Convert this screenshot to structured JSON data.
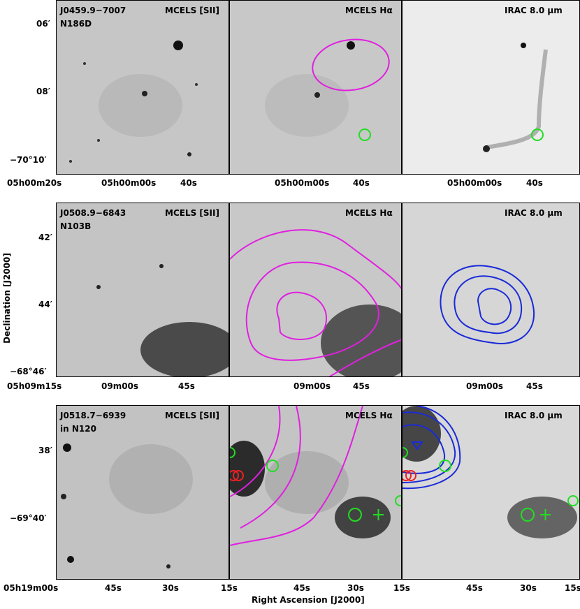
{
  "rows": [
    {
      "id": "row1",
      "source": "J0459.9−7007",
      "sublabel": "N186D",
      "panels": [
        "MCELS [SII]",
        "MCELS Hα",
        "IRAC 8.0 μm"
      ],
      "y_ticks": [
        "06′",
        "08′",
        "−70°10′"
      ],
      "x_ticks_left": [
        "05h00m20s",
        "05h00m00s",
        "40s"
      ],
      "x_ticks_mid": [
        "05h00m00s",
        "40s"
      ],
      "x_ticks_right": [
        "05h00m00s",
        "40s"
      ]
    },
    {
      "id": "row2",
      "source": "J0508.9−6843",
      "sublabel": "N103B",
      "panels": [
        "MCELS [SII]",
        "MCELS Hα",
        "IRAC 8.0 μm"
      ],
      "y_ticks": [
        "42′",
        "44′",
        "−68°46′"
      ],
      "x_ticks_left": [
        "05h09m15s",
        "09m00s",
        "45s"
      ],
      "x_ticks_mid": [
        "09m00s",
        "45s"
      ],
      "x_ticks_right": [
        "09m00s",
        "45s"
      ]
    },
    {
      "id": "row3",
      "source": "J0518.7−6939",
      "sublabel": "in N120",
      "panels": [
        "MCELS [SII]",
        "MCELS Hα",
        "IRAC 8.0 μm"
      ],
      "y_ticks": [
        "38′",
        "−69°40′"
      ],
      "x_ticks_left": [
        "05h19m00s",
        "45s",
        "30s",
        "15s"
      ],
      "x_ticks_mid": [
        "45s",
        "30s",
        "15s"
      ],
      "x_ticks_right": [
        "45s",
        "30s",
        "15s"
      ]
    }
  ],
  "axes": {
    "xlabel": "Right Ascension [J2000]",
    "ylabel": "Declination [J2000]"
  },
  "colors": {
    "magenta": "#e020e0",
    "blue": "#1a2ad8",
    "green": "#22dd22",
    "red": "#ee2020"
  }
}
